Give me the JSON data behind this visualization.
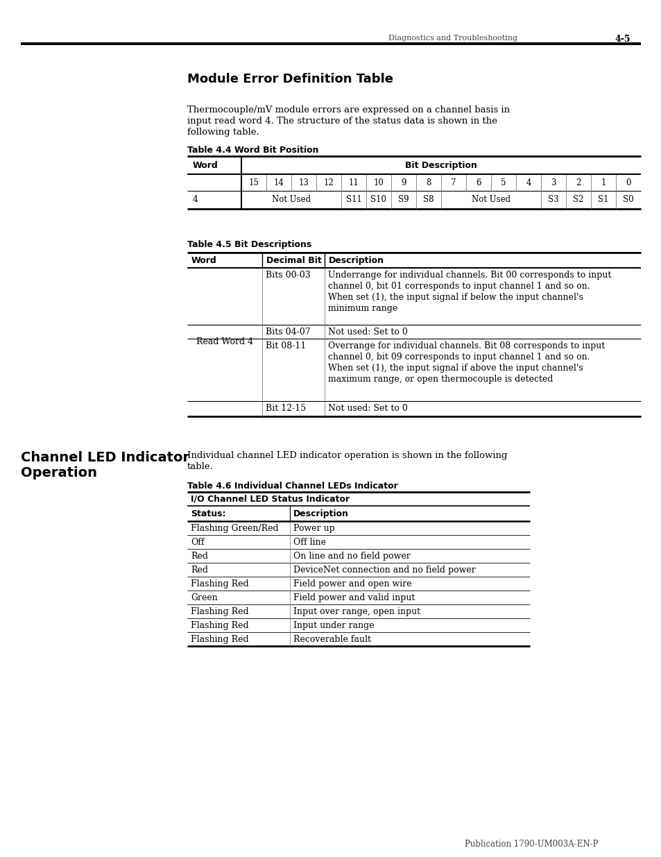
{
  "page_header_left": "Diagnostics and Troubleshooting",
  "page_header_right": "4-5",
  "page_footer": "Publication 1790-UM003A-EN-P",
  "section1_title": "Module Error Definition Table",
  "section1_body1": "Thermocouple/mV module errors are expressed on a channel basis in",
  "section1_body2": "input read word 4. The structure of the status data is shown in the",
  "section1_body3": "following table.",
  "table44_title": "Table 4.4 Word Bit Position",
  "table44_row1_nums": [
    "15",
    "14",
    "13",
    "12",
    "11",
    "10",
    "9",
    "8",
    "7",
    "6",
    "5",
    "4",
    "3",
    "2",
    "1",
    "0"
  ],
  "table45_title": "Table 4.5 Bit Descriptions",
  "table45_rows": [
    [
      "Read Word 4",
      "Bits 00-03",
      "Underrange for individual channels. Bit 00 corresponds to input\nchannel 0, bit 01 corresponds to input channel 1 and so on.\nWhen set (1), the input signal if below the input channel's\nminimum range"
    ],
    [
      "",
      "Bits 04-07",
      "Not used: Set to 0"
    ],
    [
      "",
      "Bit 08-11",
      "Overrange for individual channels. Bit 08 corresponds to input\nchannel 0, bit 09 corresponds to input channel 1 and so on.\nWhen set (1), the input signal if above the input channel's\nmaximum range, or open thermocouple is detected"
    ],
    [
      "",
      "Bit 12-15",
      "Not used: Set to 0"
    ]
  ],
  "section2_title_line1": "Channel LED Indicator",
  "section2_title_line2": "Operation",
  "section2_body1": "Individual channel LED indicator operation is shown in the following",
  "section2_body2": "table.",
  "table46_title": "Table 4.6 Individual Channel LEDs Indicator",
  "table46_group_header": "I/O Channel LED Status Indicator",
  "table46_headers": [
    "Status:",
    "Description"
  ],
  "table46_rows": [
    [
      "Flashing Green/Red",
      "Power up"
    ],
    [
      "Off",
      "Off line"
    ],
    [
      "Red",
      "On line and no field power"
    ],
    [
      "Red",
      "DeviceNet connection and no field power"
    ],
    [
      "Flashing Red",
      "Field power and open wire"
    ],
    [
      "Green",
      "Field power and valid input"
    ],
    [
      "Flashing Red",
      "Input over range, open input"
    ],
    [
      "Flashing Red",
      "Input under range"
    ],
    [
      "Flashing Red",
      "Recoverable fault"
    ]
  ]
}
